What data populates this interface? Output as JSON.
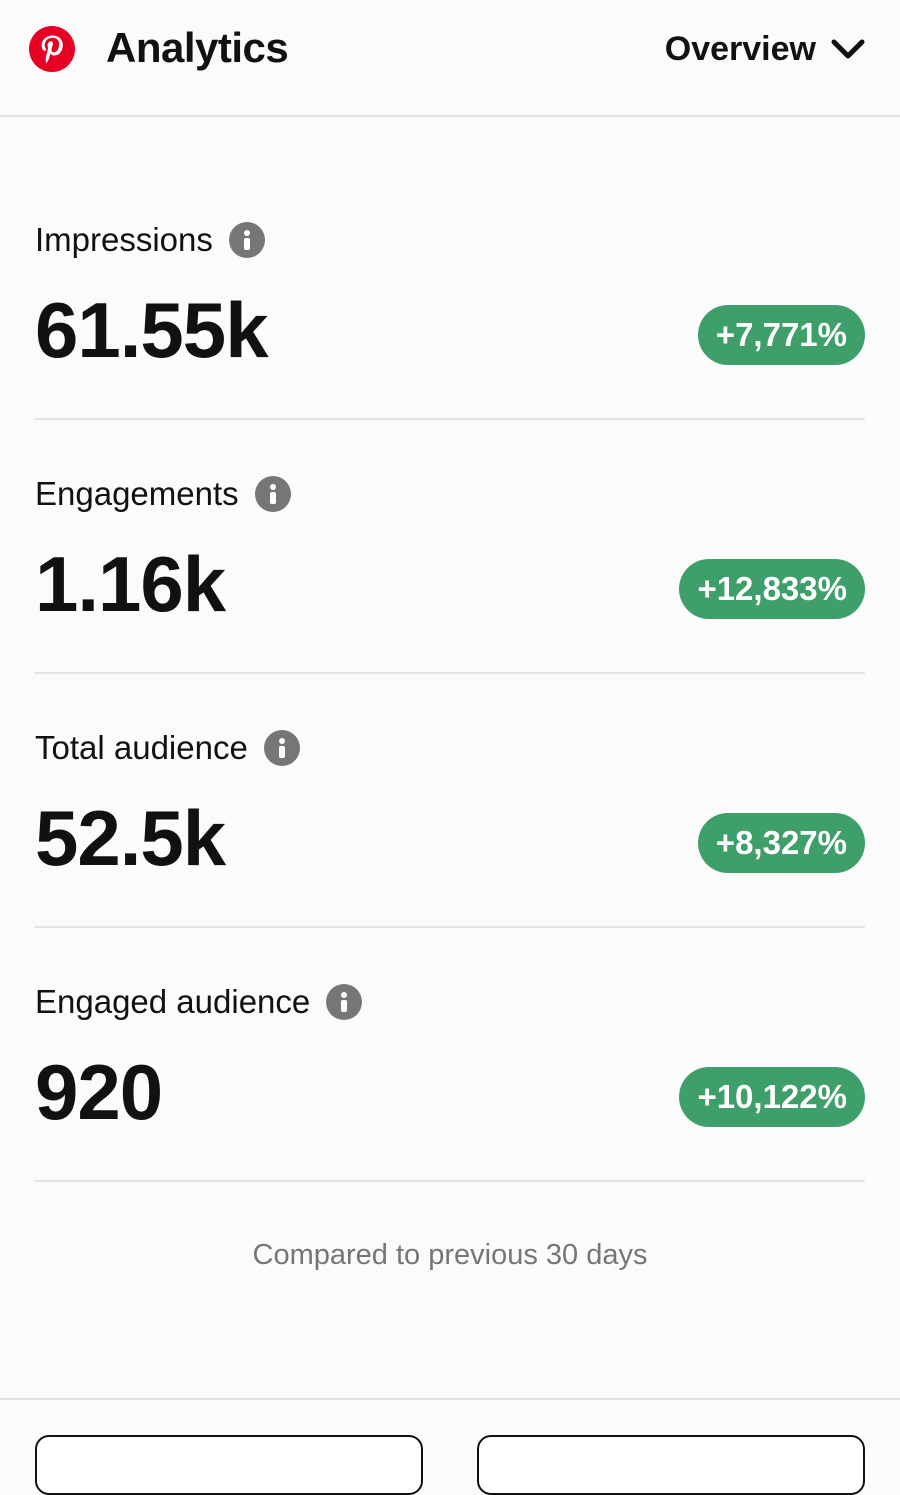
{
  "header": {
    "logo_icon": "pinterest-logo-icon",
    "title": "Analytics",
    "dropdown": {
      "label": "Overview",
      "icon": "chevron-down-icon"
    }
  },
  "colors": {
    "brand": "#e60023",
    "positive_badge": "#3e9f6b",
    "info_icon": "#767676"
  },
  "metrics": [
    {
      "label": "Impressions",
      "value": "61.55k",
      "change": "+7,771%",
      "icon": "info-icon"
    },
    {
      "label": "Engagements",
      "value": "1.16k",
      "change": "+12,833%",
      "icon": "info-icon"
    },
    {
      "label": "Total audience",
      "value": "52.5k",
      "change": "+8,327%",
      "icon": "info-icon"
    },
    {
      "label": "Engaged audience",
      "value": "920",
      "change": "+10,122%",
      "icon": "info-icon"
    }
  ],
  "footnote": "Compared to previous 30 days"
}
